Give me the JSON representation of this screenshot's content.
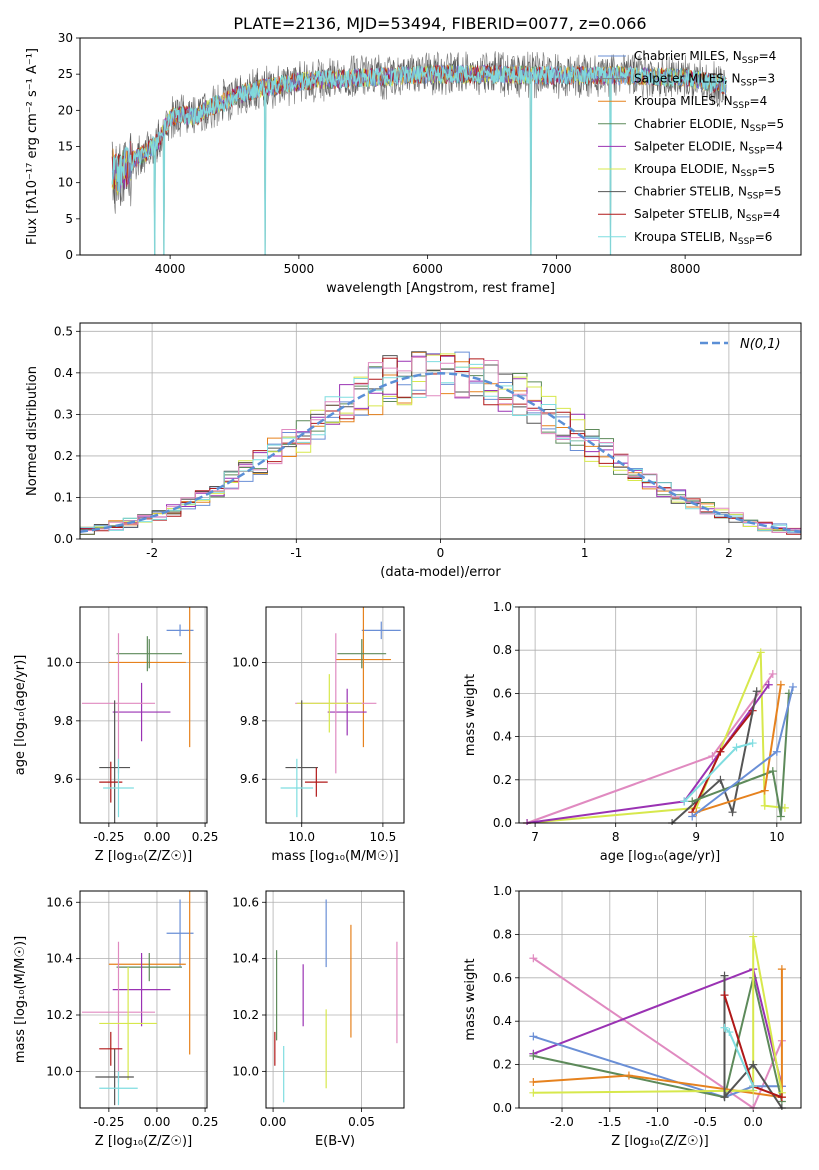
{
  "figure": {
    "title": "PLATE=2136, MJD=53494, FIBERID=0077, z=0.066"
  },
  "palette": {
    "Chabrier MILES": "#6a8fd6",
    "Salpeter MILES": "#7f7f7f",
    "Kroupa MILES": "#e6821e",
    "Chabrier ELODIE": "#5d8a5a",
    "Salpeter ELODIE": "#9a32b3",
    "Kroupa ELODIE": "#d7e84c",
    "Chabrier STELIB": "#555555",
    "Salpeter STELIB": "#b01818",
    "Kroupa STELIB": "#7fdde0",
    "pink": "#e08ac0",
    "normal": "#5b8fd6"
  },
  "chart_data": [
    {
      "id": "spectrum",
      "type": "line",
      "title": "PLATE=2136, MJD=53494, FIBERID=0077, z=0.066",
      "xlabel": "wavelength [Angstrom, rest frame]",
      "ylabel": "Flux [fλ10⁻¹⁷ erg cm⁻² s⁻¹ A⁻¹]",
      "xlim": [
        3300,
        8900
      ],
      "ylim": [
        0,
        30
      ],
      "xticks": [
        4000,
        5000,
        6000,
        7000,
        8000
      ],
      "yticks": [
        0,
        5,
        10,
        15,
        20,
        25,
        30
      ],
      "legend_position": "top-right",
      "series": [
        {
          "name": "Chabrier MILES, N_SSP=4",
          "label": "Chabrier MILES, N",
          "sub": "SSP",
          "suffix": "=4"
        },
        {
          "name": "Salpeter MILES, N_SSP=3",
          "label": "Salpeter MILES, N",
          "sub": "SSP",
          "suffix": "=3"
        },
        {
          "name": "Kroupa MILES, N_SSP=4",
          "label": "Kroupa MILES, N",
          "sub": "SSP",
          "suffix": "=4"
        },
        {
          "name": "Chabrier ELODIE, N_SSP=5",
          "label": "Chabrier ELODIE, N",
          "sub": "SSP",
          "suffix": "=5"
        },
        {
          "name": "Salpeter ELODIE, N_SSP=4",
          "label": "Salpeter ELODIE, N",
          "sub": "SSP",
          "suffix": "=4"
        },
        {
          "name": "Kroupa ELODIE, N_SSP=5",
          "label": "Kroupa ELODIE, N",
          "sub": "SSP",
          "suffix": "=5"
        },
        {
          "name": "Chabrier STELIB, N_SSP=5",
          "label": "Chabrier STELIB, N",
          "sub": "SSP",
          "suffix": "=5"
        },
        {
          "name": "Salpeter STELIB, N_SSP=4",
          "label": "Salpeter STELIB, N",
          "sub": "SSP",
          "suffix": "=4"
        },
        {
          "name": "Kroupa STELIB, N_SSP=6",
          "label": "Kroupa STELIB, N",
          "sub": "SSP",
          "suffix": "=6"
        }
      ],
      "continuum": {
        "x": [
          3550,
          3600,
          3700,
          3800,
          3900,
          4000,
          4100,
          4200,
          4300,
          4400,
          4500,
          4700,
          5000,
          5500,
          6000,
          6500,
          7000,
          7500,
          8000,
          8300
        ],
        "y": [
          12,
          11,
          13,
          14,
          15.5,
          19,
          19.5,
          19,
          20.5,
          21,
          22,
          23,
          24,
          24.5,
          25,
          25,
          24.8,
          24.8,
          24.5,
          23.5
        ]
      },
      "dips": [
        {
          "x": 3880,
          "y": 0
        },
        {
          "x": 3950,
          "y": 0
        },
        {
          "x": 4740,
          "y": 0
        },
        {
          "x": 6800,
          "y": 0
        },
        {
          "x": 7420,
          "y": 0
        }
      ]
    },
    {
      "id": "residuals",
      "type": "histogram",
      "xlabel": "(data-model)/error",
      "ylabel": "Normed distribution",
      "xlim": [
        -2.5,
        2.5
      ],
      "ylim": [
        0,
        0.52
      ],
      "xticks": [
        -2,
        -1,
        0,
        1,
        2
      ],
      "yticks": [
        0.0,
        0.1,
        0.2,
        0.3,
        0.4,
        0.5
      ],
      "legend_position": "top-right",
      "legend": "N(0,1)",
      "bin_width": 0.1
    },
    {
      "id": "z_age",
      "type": "scatter",
      "xlabel": "Z [log₁₀(Z/Z☉)]",
      "ylabel": "age [log₁₀(age/yr)]",
      "xlim": [
        -0.4,
        0.26
      ],
      "ylim": [
        9.45,
        10.19
      ],
      "xticks": [
        -0.25,
        0.0,
        0.25
      ],
      "yticks": [
        9.6,
        9.8,
        10.0
      ],
      "points": [
        {
          "x": 0.12,
          "y": 10.11,
          "xerr": 0.07,
          "yerr": 0.02,
          "color": "Chabrier MILES"
        },
        {
          "x": -0.05,
          "y": 10.0,
          "xerr": 0.2,
          "yerr": 0.0,
          "color": "Kroupa MILES"
        },
        {
          "x": 0.17,
          "y": 10.01,
          "xerr": 0.0,
          "yerr": 0.3,
          "color": "Kroupa MILES"
        },
        {
          "x": -0.04,
          "y": 10.03,
          "xerr": 0.17,
          "yerr": 0.05,
          "color": "Chabrier ELODIE"
        },
        {
          "x": -0.08,
          "y": 9.83,
          "xerr": 0.15,
          "yerr": 0.1,
          "color": "Salpeter ELODIE"
        },
        {
          "x": -0.2,
          "y": 9.86,
          "xerr": 0.19,
          "yerr": 0.24,
          "color": "pink"
        },
        {
          "x": -0.22,
          "y": 9.64,
          "xerr": 0.08,
          "yerr": 0.23,
          "color": "Chabrier STELIB"
        },
        {
          "x": -0.24,
          "y": 9.59,
          "xerr": 0.06,
          "yerr": 0.07,
          "color": "Salpeter STELIB"
        },
        {
          "x": -0.2,
          "y": 9.57,
          "xerr": 0.08,
          "yerr": 0.1,
          "color": "Kroupa STELIB"
        },
        {
          "x": -0.05,
          "y": 10.03,
          "xerr": 0.0,
          "yerr": 0.06,
          "color": "Chabrier ELODIE"
        }
      ]
    },
    {
      "id": "mass_age",
      "type": "scatter",
      "xlabel": "mass [log₁₀(M/M☉)]",
      "ylabel": "",
      "xlim": [
        9.78,
        10.63
      ],
      "ylim": [
        9.45,
        10.19
      ],
      "xticks": [
        10.0,
        10.5
      ],
      "yticks": [
        9.6,
        9.8,
        10.0
      ],
      "points": [
        {
          "x": 10.49,
          "y": 10.11,
          "xerr": 0.12,
          "yerr": 0.03,
          "color": "Chabrier MILES"
        },
        {
          "x": 10.38,
          "y": 10.01,
          "xerr": 0.17,
          "yerr": 0.3,
          "color": "Kroupa MILES"
        },
        {
          "x": 10.37,
          "y": 10.03,
          "xerr": 0.15,
          "yerr": 0.05,
          "color": "Chabrier ELODIE"
        },
        {
          "x": 10.28,
          "y": 9.83,
          "xerr": 0.12,
          "yerr": 0.08,
          "color": "Salpeter ELODIE"
        },
        {
          "x": 10.21,
          "y": 9.86,
          "xerr": 0.25,
          "yerr": 0.24,
          "color": "pink"
        },
        {
          "x": 10.17,
          "y": 9.86,
          "xerr": 0.2,
          "yerr": 0.1,
          "color": "Kroupa ELODIE"
        },
        {
          "x": 10.0,
          "y": 9.64,
          "xerr": 0.1,
          "yerr": 0.23,
          "color": "Chabrier STELIB"
        },
        {
          "x": 10.09,
          "y": 9.59,
          "xerr": 0.07,
          "yerr": 0.05,
          "color": "Salpeter STELIB"
        },
        {
          "x": 9.97,
          "y": 9.57,
          "xerr": 0.1,
          "yerr": 0.1,
          "color": "Kroupa STELIB"
        }
      ]
    },
    {
      "id": "age_weight",
      "type": "line",
      "xlabel": "age [log₁₀(age/yr)]",
      "ylabel": "mass weight",
      "xlim": [
        6.8,
        10.3
      ],
      "ylim": [
        0,
        1.0
      ],
      "xticks": [
        7,
        8,
        9,
        10
      ],
      "yticks": [
        0.0,
        0.2,
        0.4,
        0.6,
        0.8,
        1.0
      ],
      "series": [
        {
          "color": "pink",
          "x": [
            6.9,
            9.2,
            9.95
          ],
          "y": [
            0.0,
            0.31,
            0.69
          ]
        },
        {
          "color": "Kroupa ELODIE",
          "x": [
            6.9,
            9.0,
            9.8,
            9.85,
            10.1
          ],
          "y": [
            0.0,
            0.07,
            0.79,
            0.08,
            0.07
          ]
        },
        {
          "color": "Salpeter ELODIE",
          "x": [
            6.9,
            8.85,
            9.9
          ],
          "y": [
            0.0,
            0.1,
            0.64
          ]
        },
        {
          "color": "Salpeter STELIB",
          "x": [
            8.95,
            9.3,
            9.7
          ],
          "y": [
            0.05,
            0.33,
            0.52
          ]
        },
        {
          "color": "Chabrier STELIB",
          "x": [
            8.7,
            9.3,
            9.45,
            9.75
          ],
          "y": [
            0.0,
            0.2,
            0.05,
            0.61
          ]
        },
        {
          "color": "Chabrier ELODIE",
          "x": [
            8.95,
            9.95,
            10.05,
            10.15
          ],
          "y": [
            0.1,
            0.24,
            0.03,
            0.6
          ]
        },
        {
          "color": "Kroupa MILES",
          "x": [
            9.0,
            9.85,
            10.05
          ],
          "y": [
            0.05,
            0.15,
            0.64
          ]
        },
        {
          "color": "Chabrier MILES",
          "x": [
            8.95,
            10.0,
            10.2
          ],
          "y": [
            0.03,
            0.33,
            0.63
          ]
        },
        {
          "color": "Kroupa STELIB",
          "x": [
            8.85,
            9.5,
            9.7
          ],
          "y": [
            0.1,
            0.35,
            0.37
          ]
        }
      ]
    },
    {
      "id": "z_mass",
      "type": "scatter",
      "xlabel": "Z [log₁₀(Z/Z☉)]",
      "ylabel": "mass [log₁₀(M/M☉)]",
      "xlim": [
        -0.4,
        0.26
      ],
      "ylim": [
        9.87,
        10.64
      ],
      "xticks": [
        -0.25,
        0.0,
        0.25
      ],
      "yticks": [
        10.0,
        10.2,
        10.4,
        10.6
      ],
      "points": [
        {
          "x": 0.12,
          "y": 10.49,
          "xerr": 0.07,
          "yerr": 0.12,
          "color": "Chabrier MILES"
        },
        {
          "x": 0.17,
          "y": 10.38,
          "xerr": 0.0,
          "yerr": 0.32,
          "color": "Kroupa MILES"
        },
        {
          "x": -0.05,
          "y": 10.38,
          "xerr": 0.2,
          "yerr": 0.0,
          "color": "Kroupa MILES"
        },
        {
          "x": -0.04,
          "y": 10.37,
          "xerr": 0.17,
          "yerr": 0.05,
          "color": "Chabrier ELODIE"
        },
        {
          "x": -0.08,
          "y": 10.29,
          "xerr": 0.15,
          "yerr": 0.13,
          "color": "Salpeter ELODIE"
        },
        {
          "x": -0.2,
          "y": 10.21,
          "xerr": 0.19,
          "yerr": 0.25,
          "color": "pink"
        },
        {
          "x": -0.15,
          "y": 10.17,
          "xerr": 0.15,
          "yerr": 0.2,
          "color": "Kroupa ELODIE"
        },
        {
          "x": -0.22,
          "y": 9.98,
          "xerr": 0.1,
          "yerr": 0.1,
          "color": "Chabrier STELIB"
        },
        {
          "x": -0.24,
          "y": 10.08,
          "xerr": 0.06,
          "yerr": 0.06,
          "color": "Salpeter STELIB"
        },
        {
          "x": -0.2,
          "y": 9.94,
          "xerr": 0.1,
          "yerr": 0.06,
          "color": "Kroupa STELIB"
        }
      ]
    },
    {
      "id": "ebv_mass",
      "type": "scatter",
      "xlabel": "E(B-V)",
      "ylabel": "",
      "xlim": [
        -0.004,
        0.074
      ],
      "ylim": [
        9.87,
        10.64
      ],
      "xticks": [
        0.0,
        0.05
      ],
      "yticks": [
        10.0,
        10.2,
        10.4,
        10.6
      ],
      "points": [
        {
          "x": 0.03,
          "y": 10.49,
          "yerr": 0.12,
          "color": "Chabrier MILES"
        },
        {
          "x": 0.044,
          "y": 10.32,
          "yerr": 0.2,
          "color": "Kroupa MILES"
        },
        {
          "x": 0.002,
          "y": 10.27,
          "yerr": 0.16,
          "color": "Chabrier ELODIE"
        },
        {
          "x": 0.017,
          "y": 10.27,
          "yerr": 0.11,
          "color": "Salpeter ELODIE"
        },
        {
          "x": 0.07,
          "y": 10.28,
          "yerr": 0.18,
          "color": "pink"
        },
        {
          "x": 0.03,
          "y": 10.08,
          "yerr": 0.14,
          "color": "Kroupa ELODIE"
        },
        {
          "x": 0.001,
          "y": 10.08,
          "yerr": 0.06,
          "color": "Salpeter STELIB"
        },
        {
          "x": 0.006,
          "y": 9.99,
          "yerr": 0.1,
          "color": "Kroupa STELIB"
        }
      ]
    },
    {
      "id": "z_weight",
      "type": "line",
      "xlabel": "Z [log₁₀(Z/Z☉)]",
      "ylabel": "mass weight",
      "xlim": [
        -2.45,
        0.5
      ],
      "ylim": [
        0,
        1.0
      ],
      "xticks": [
        -2.0,
        -1.5,
        -1.0,
        -0.5,
        0.0
      ],
      "yticks": [
        0.0,
        0.2,
        0.4,
        0.6,
        0.8,
        1.0
      ],
      "series": [
        {
          "color": "pink",
          "x": [
            -2.3,
            0.0,
            0.3
          ],
          "y": [
            0.69,
            0.0,
            0.31
          ]
        },
        {
          "color": "Salpeter ELODIE",
          "x": [
            -2.3,
            0.0,
            0.3
          ],
          "y": [
            0.25,
            0.64,
            0.1
          ]
        },
        {
          "color": "Chabrier MILES",
          "x": [
            -2.3,
            -0.3,
            0.0,
            0.3
          ],
          "y": [
            0.33,
            0.05,
            0.1,
            0.1
          ]
        },
        {
          "color": "Chabrier ELODIE",
          "x": [
            -2.3,
            -0.3,
            0.0,
            0.3
          ],
          "y": [
            0.24,
            0.05,
            0.6,
            0.03
          ]
        },
        {
          "color": "Kroupa MILES",
          "x": [
            -2.3,
            -1.3,
            0.3,
            0.3
          ],
          "y": [
            0.12,
            0.15,
            0.05,
            0.64
          ]
        },
        {
          "color": "Kroupa ELODIE",
          "x": [
            -2.3,
            0.0,
            0.0,
            0.3
          ],
          "y": [
            0.07,
            0.08,
            0.79,
            0.07
          ]
        },
        {
          "color": "Chabrier STELIB",
          "x": [
            -0.3,
            -0.3,
            0.0,
            0.3
          ],
          "y": [
            0.61,
            0.05,
            0.2,
            0.0
          ]
        },
        {
          "color": "Salpeter STELIB",
          "x": [
            -0.3,
            0.0,
            0.3
          ],
          "y": [
            0.52,
            0.1,
            0.05
          ]
        },
        {
          "color": "Kroupa STELIB",
          "x": [
            -0.3,
            -0.25,
            0.0
          ],
          "y": [
            0.37,
            0.35,
            0.1
          ]
        }
      ]
    }
  ]
}
